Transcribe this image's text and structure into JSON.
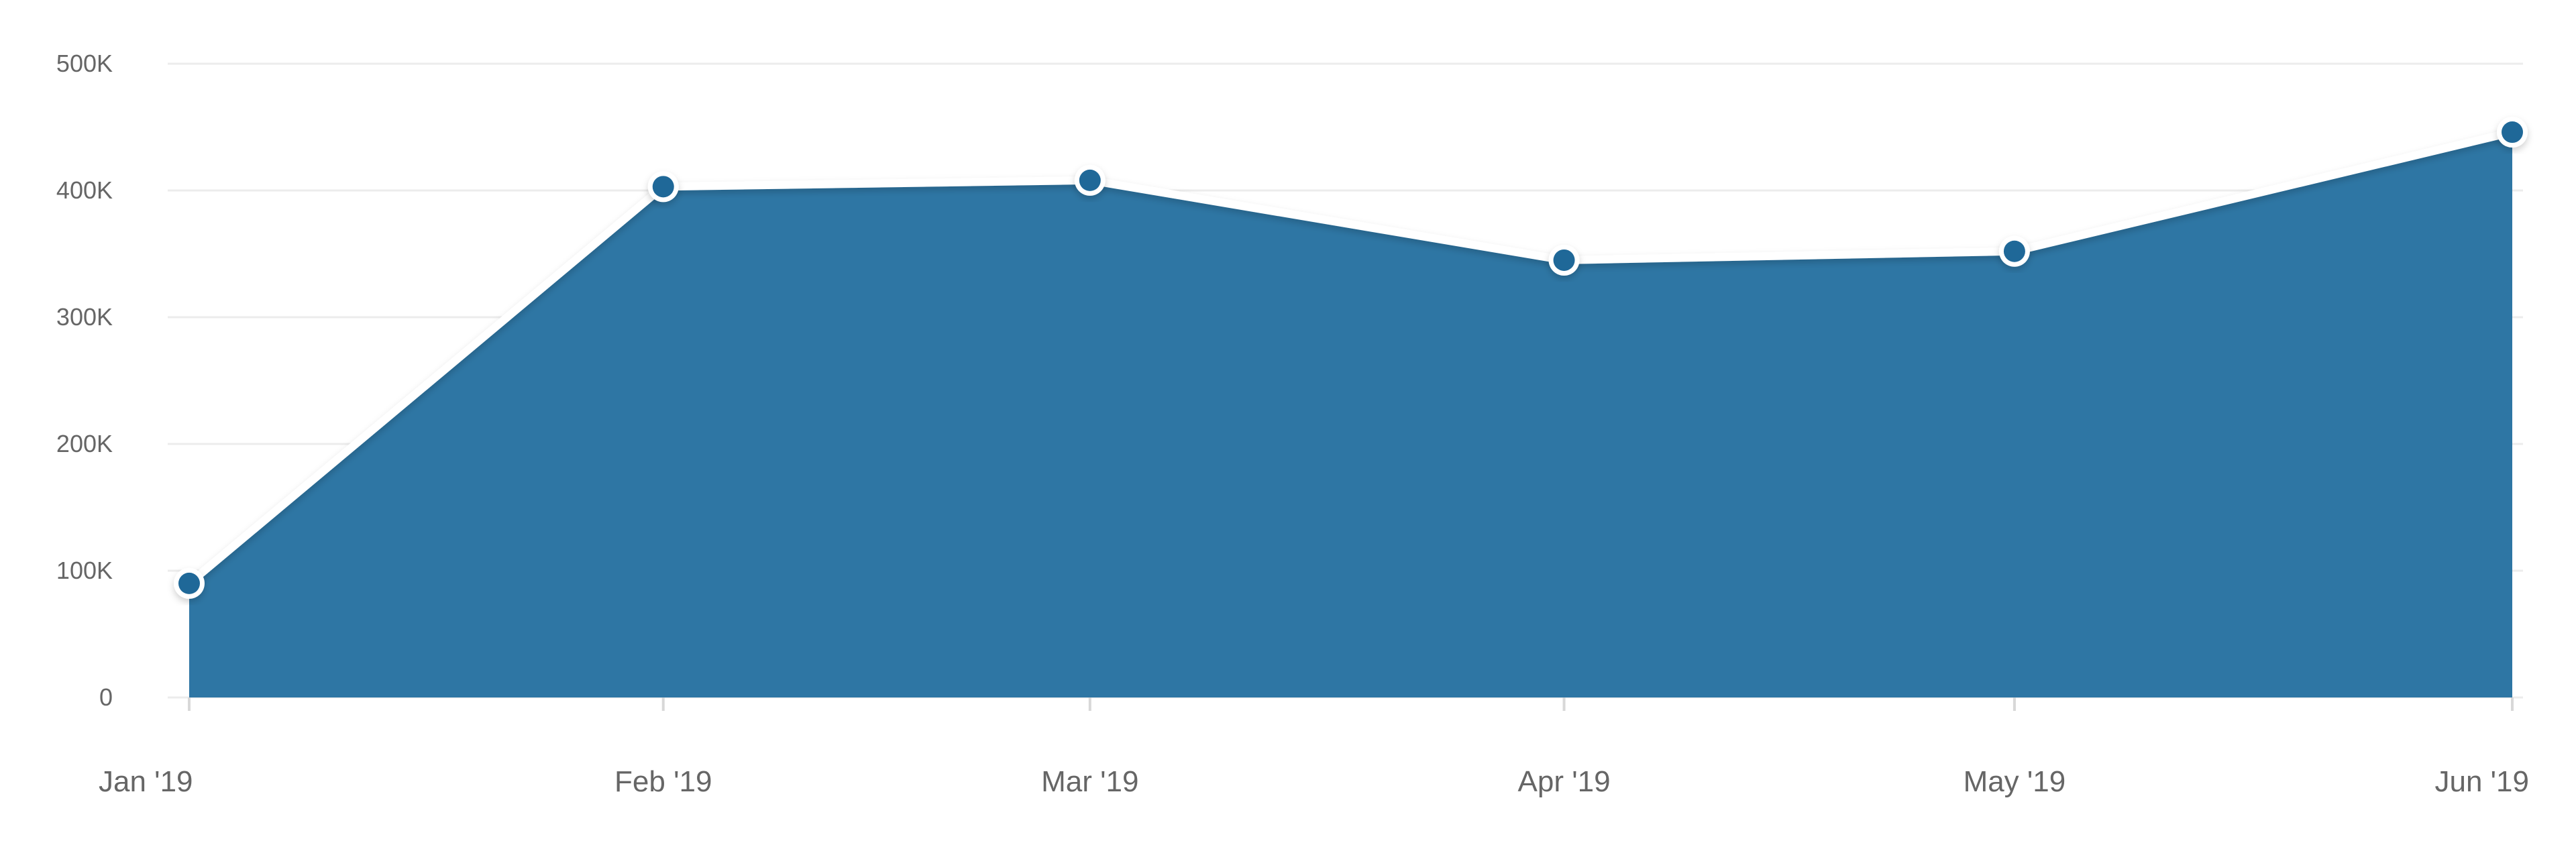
{
  "chart_data": {
    "type": "area",
    "categories": [
      "Jan '19",
      "Feb '19",
      "Mar '19",
      "Apr '19",
      "May '19",
      "Jun '19"
    ],
    "x_positions": [
      0,
      1,
      2,
      3,
      4,
      5
    ],
    "x_axis": {
      "positions": [
        0.0,
        1.0,
        1.9,
        2.9,
        3.85,
        4.9
      ]
    },
    "series": [
      {
        "values": [
          90000,
          403000,
          408000,
          345000,
          352000,
          446000
        ],
        "fill_color": "#2e76a4",
        "line_color": "#ffffff",
        "marker_color": "#1f6898",
        "marker_outline": "#ffffff"
      }
    ],
    "y_ticks": [
      {
        "value": 0,
        "label": "0"
      },
      {
        "value": 100000,
        "label": "100K"
      },
      {
        "value": 200000,
        "label": "200K"
      },
      {
        "value": 300000,
        "label": "300K"
      },
      {
        "value": 400000,
        "label": "400K"
      },
      {
        "value": 500000,
        "label": "500K"
      }
    ],
    "ylim": [
      0,
      500000
    ],
    "grid": true,
    "legend": "none",
    "title": "",
    "xlabel": "",
    "ylabel": ""
  }
}
